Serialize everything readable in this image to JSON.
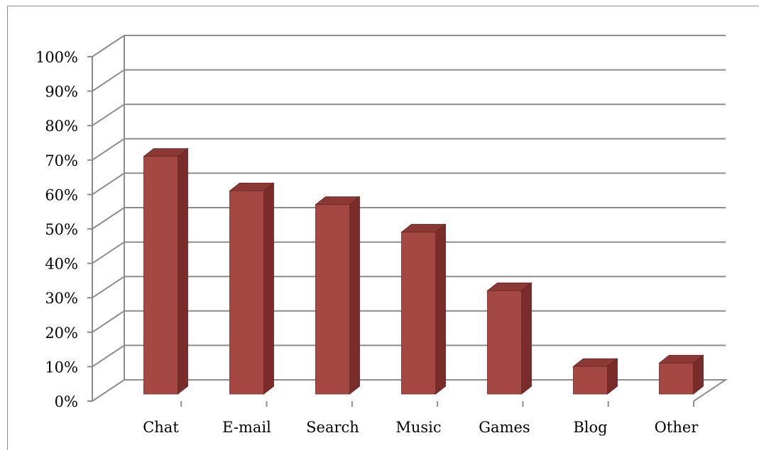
{
  "chart_data": {
    "type": "bar",
    "categories": [
      "Chat",
      "E-mail",
      "Search",
      "Music",
      "Games",
      "Blog",
      "Other"
    ],
    "values": [
      69,
      59,
      55,
      47,
      30,
      8,
      9
    ],
    "y_ticks": [
      "0%",
      "10%",
      "20%",
      "30%",
      "40%",
      "50%",
      "60%",
      "70%",
      "80%",
      "90%",
      "100%"
    ],
    "ylim": [
      0,
      100
    ],
    "y_unit": "%",
    "grid": true,
    "style": "3d-column",
    "colors": {
      "bar_front": "#a54742",
      "bar_side": "#7a2c2a",
      "bar_top": "#8c3834",
      "gridline": "#8c8c8c"
    }
  }
}
